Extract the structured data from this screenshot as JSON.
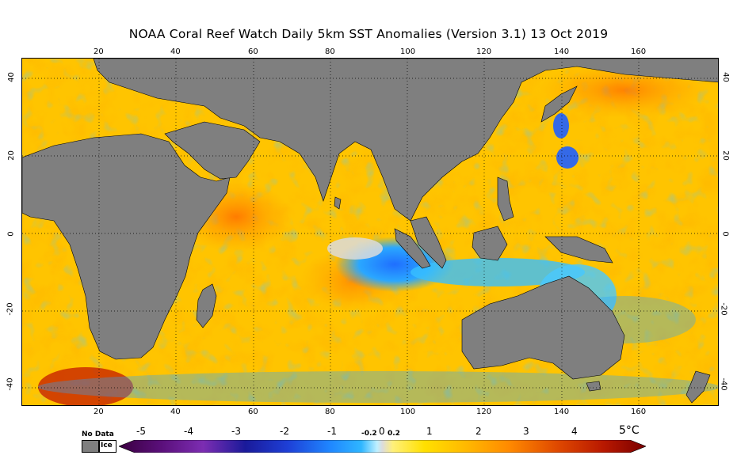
{
  "title": "NOAA Coral Reef Watch Daily 5km SST Anomalies (Version 3.1)   13 Oct 2019",
  "axes": {
    "lon_ticks": [
      "20",
      "40",
      "60",
      "80",
      "100",
      "120",
      "140",
      "160"
    ],
    "lat_ticks_left": [
      "40",
      "20",
      "0",
      "-20",
      "-40"
    ],
    "lat_ticks_right": [
      "40",
      "20",
      "0",
      "-20",
      "-40"
    ]
  },
  "legend": {
    "no_data_label": "No Data",
    "ice_label": "Ice",
    "tick_labels": [
      "-5",
      "-4",
      "-3",
      "-2",
      "-1",
      "-0.2",
      "0",
      "0.2",
      "1",
      "2",
      "3",
      "4",
      "5°C"
    ],
    "colors": [
      "#3a0040",
      "#5a0f7a",
      "#7c2db2",
      "#1a1a9a",
      "#1e3fd6",
      "#1f86ff",
      "#2fb6ff",
      "#bff0ff",
      "#dcdcdc",
      "#fff07a",
      "#ffe000",
      "#ffb800",
      "#ff8a00",
      "#e04a00",
      "#b81800",
      "#7a0000"
    ]
  },
  "map": {
    "land_color": "#7f7f7f",
    "ocean_warm": "#ffc300",
    "ocean_hot": "#ff8a1a",
    "ocean_cool": "#2aa7ff",
    "ocean_neutral": "#dcdcdc"
  }
}
